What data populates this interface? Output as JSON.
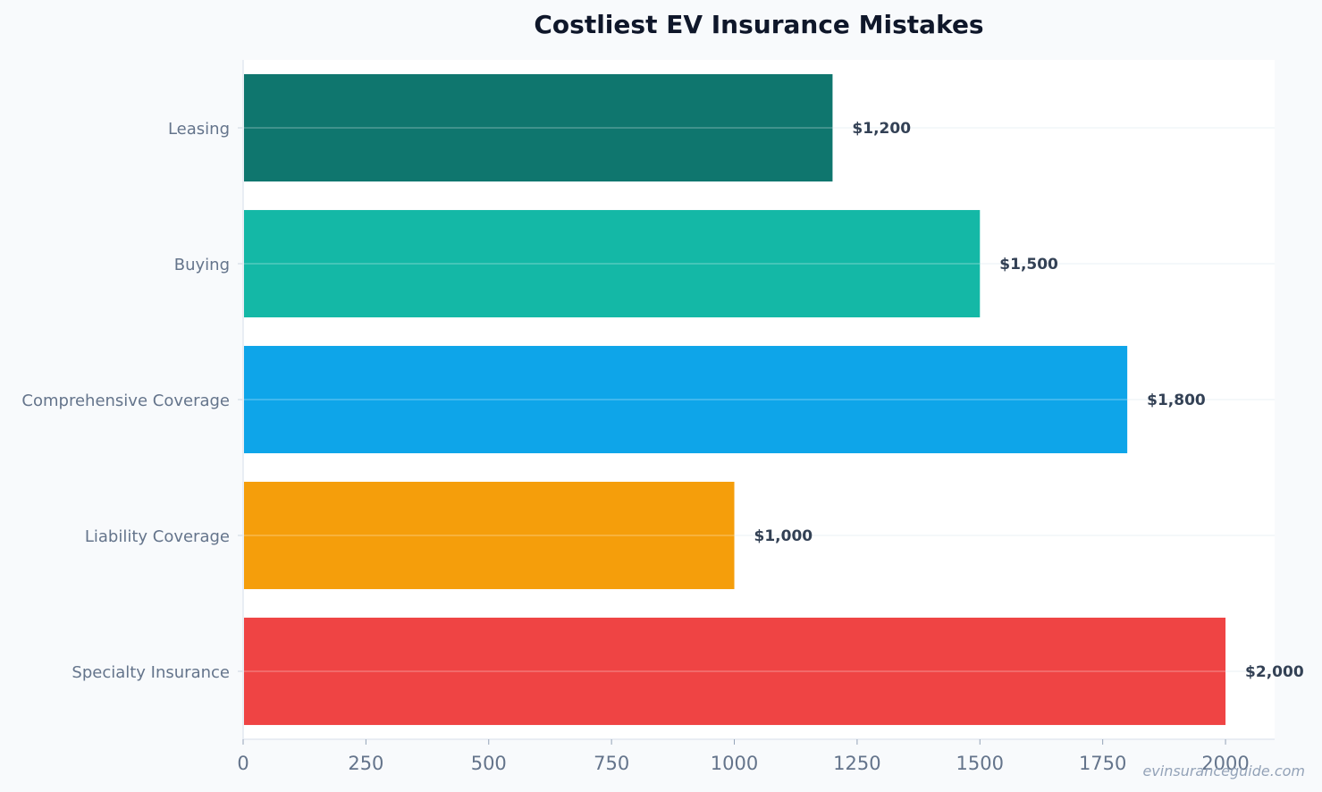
{
  "watermark": "evinsuranceguide.com",
  "chart_data": {
    "type": "bar",
    "orientation": "horizontal",
    "title": "Costliest EV Insurance Mistakes",
    "xlabel": "",
    "ylabel": "",
    "categories": [
      "Leasing",
      "Buying",
      "Comprehensive Coverage",
      "Liability Coverage",
      "Specialty Insurance"
    ],
    "values": [
      1200,
      1500,
      1800,
      1000,
      2000
    ],
    "value_labels": [
      "$1,200",
      "$1,500",
      "$1,800",
      "$1,000",
      "$2,000"
    ],
    "colors": [
      "#0f766e",
      "#14b8a6",
      "#0ea5e9",
      "#f59e0b",
      "#ef4444"
    ],
    "xlim": [
      0,
      2100
    ],
    "xticks": [
      0,
      250,
      500,
      750,
      1000,
      1250,
      1500,
      1750,
      2000
    ],
    "grid": true,
    "legend": "none"
  }
}
